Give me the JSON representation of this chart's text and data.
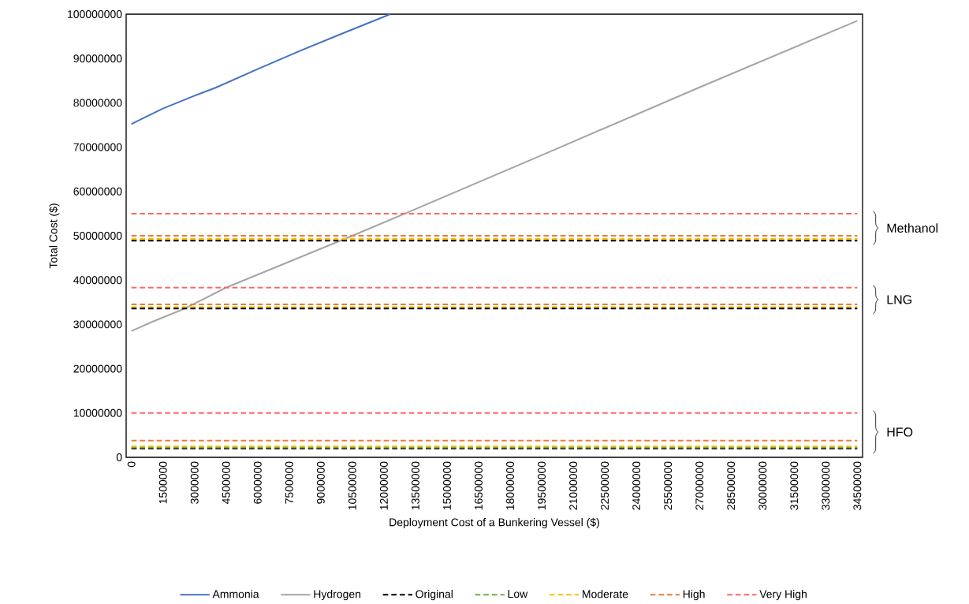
{
  "chart_data": {
    "type": "line",
    "xlabel": "Deployment Cost of a Bunkering Vessel ($)",
    "ylabel": "Total Cost ($)",
    "xlim": [
      -250000,
      34750000
    ],
    "xticks": [
      0,
      1500000,
      3000000,
      4500000,
      6000000,
      7500000,
      9000000,
      10500000,
      12000000,
      13500000,
      15000000,
      16500000,
      18000000,
      19500000,
      21000000,
      22500000,
      24000000,
      25500000,
      27000000,
      28500000,
      30000000,
      31500000,
      33000000,
      34500000
    ],
    "ylim": [
      0,
      100000000
    ],
    "yticks": [
      0,
      10000000,
      20000000,
      30000000,
      40000000,
      50000000,
      60000000,
      70000000,
      80000000,
      90000000,
      100000000
    ],
    "grid": false,
    "legend": "bottom",
    "marker": "none",
    "series": [
      {
        "name": "Ammonia",
        "color": "#4472c4",
        "line_style": "solid",
        "x": [
          0,
          500000,
          1500000,
          3000000,
          4000000,
          6000000,
          8000000,
          10000000,
          12300000
        ],
        "values": [
          75200000,
          76400000,
          78700000,
          81600000,
          83400000,
          87600000,
          91700000,
          95600000,
          100000000
        ]
      },
      {
        "name": "Hydrogen",
        "color": "#a5a5a5",
        "line_style": "solid",
        "x": [
          0,
          1000000,
          2500000,
          4500000,
          10500000,
          13000000,
          20000000,
          27000000,
          34500000
        ],
        "values": [
          28500000,
          30600000,
          33500000,
          38300000,
          50000000,
          55000000,
          69200000,
          83500000,
          98500000
        ]
      },
      {
        "name": "Original",
        "color": "#000000",
        "line_style": "dashed",
        "x": [
          0,
          34500000
        ],
        "values": [
          2000000,
          2000000
        ]
      },
      {
        "name": "Low",
        "color": "#70ad47",
        "line_style": "dashed",
        "x": [
          0,
          34500000
        ],
        "values": [
          2200000,
          2200000
        ]
      },
      {
        "name": "Moderate",
        "color": "#ffc000",
        "line_style": "dashed",
        "x": [
          0,
          34500000
        ],
        "values": [
          2500000,
          2500000
        ]
      },
      {
        "name": "High",
        "color": "#ed7d31",
        "line_style": "dashed",
        "x": [
          0,
          34500000
        ],
        "values": [
          3800000,
          3800000
        ]
      },
      {
        "name": "Very High",
        "color": "#ff6666",
        "line_style": "dashed",
        "x": [
          0,
          34500000
        ],
        "values": [
          10000000,
          10000000
        ]
      },
      {
        "color": "#ffc000",
        "line_style": "dashed",
        "x": [
          0,
          34500000
        ],
        "values": [
          33900000,
          33900000
        ]
      },
      {
        "color": "#ed7d31",
        "line_style": "dashed",
        "x": [
          0,
          34500000
        ],
        "values": [
          34500000,
          34500000
        ]
      },
      {
        "color": "#ff6666",
        "line_style": "dashed",
        "x": [
          0,
          34500000
        ],
        "values": [
          38300000,
          38300000
        ]
      },
      {
        "color": "#000000",
        "line_style": "dashed",
        "x": [
          0,
          34500000
        ],
        "values": [
          33600000,
          33600000
        ]
      },
      {
        "color": "#ffc000",
        "line_style": "dashed",
        "x": [
          0,
          34500000
        ],
        "values": [
          49300000,
          49300000
        ]
      },
      {
        "color": "#ed7d31",
        "line_style": "dashed",
        "x": [
          0,
          34500000
        ],
        "values": [
          50000000,
          50000000
        ]
      },
      {
        "color": "#ff6666",
        "line_style": "dashed",
        "x": [
          0,
          34500000
        ],
        "values": [
          55000000,
          55000000
        ]
      },
      {
        "color": "#000000",
        "line_style": "dashed",
        "x": [
          0,
          34500000
        ],
        "values": [
          48900000,
          48900000
        ]
      }
    ],
    "annotations": [
      "Methanol",
      "LNG",
      "HFO"
    ]
  }
}
